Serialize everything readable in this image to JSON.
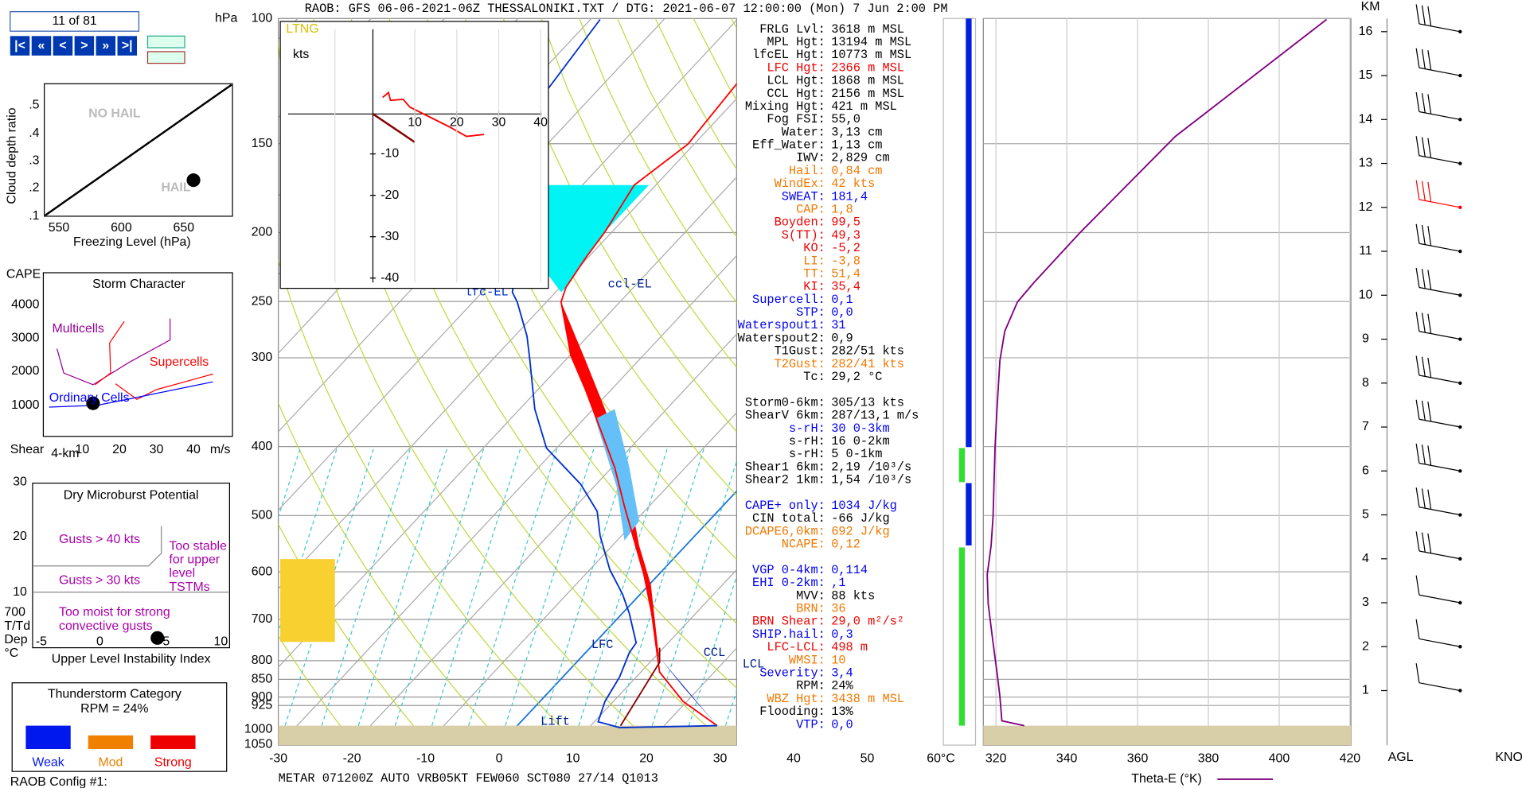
{
  "header": "RAOB:  GFS 06-06-2021-06Z THESSALONIKI.TXT / DTG: 2021-06-07 12:00:00 (Mon)  7 Jun 2:00 PM",
  "nav": {
    "counter": "11 of 81",
    "buttons": [
      "|<",
      "«",
      "<",
      ">",
      "»",
      ">|"
    ]
  },
  "hail_chart": {
    "y_label": "Cloud depth ratio",
    "x_label": "Freezing Level (hPa)",
    "no_hail": "NO HAIL",
    "hail": "HAIL",
    "yticks": [
      ".5",
      ".4",
      ".3",
      ".2",
      ".1"
    ],
    "xticks": [
      "550",
      "600",
      "650"
    ]
  },
  "storm_character": {
    "title": "Storm Character",
    "y_label": "CAPE",
    "yticks": [
      "4000",
      "3000",
      "2000",
      "1000"
    ],
    "regions": [
      "Multicells",
      "Supercells",
      "Ordinary Cells"
    ],
    "x_label": "Shear",
    "x_sub": "4-km",
    "xticks": [
      "10",
      "20",
      "30",
      "40"
    ],
    "x_unit": "m/s"
  },
  "microburst": {
    "title": "Dry Microburst Potential",
    "yticks": [
      "30",
      "20",
      "10"
    ],
    "y_label": [
      "700",
      "T/Td",
      "Dep",
      "°C"
    ],
    "xticks": [
      "-5",
      "0",
      "5",
      "10"
    ],
    "x_label": "Upper Level Instability Index",
    "gusts40": "Gusts > 40 kts",
    "gusts30": "Gusts > 30 kts",
    "stable": [
      "Too stable",
      "for upper",
      "level",
      "TSTMs"
    ],
    "moist": [
      "Too moist for strong",
      "convective gusts"
    ]
  },
  "thunderstorm": {
    "title": "Thunderstorm Category",
    "rpm": "RPM = 24%",
    "categories": [
      "Weak",
      "Mod",
      "Strong"
    ]
  },
  "config": "RAOB Config #1:",
  "skewt": {
    "unit": "hPa",
    "pressure_ticks": [
      "100",
      "150",
      "200",
      "250",
      "300",
      "400",
      "500",
      "600",
      "700",
      "800",
      "850",
      "900",
      "925",
      "1000",
      "1050"
    ],
    "temp_ticks": [
      "-30",
      "-20",
      "-10",
      "0",
      "10",
      "20",
      "30",
      "40",
      "50",
      "60°C"
    ],
    "levels": {
      "lfc_el": "lfc-EL",
      "ccl_el": "ccl-EL",
      "lfc": "LFC",
      "ccl": "CCL",
      "lcl": "LCL",
      "lift": "Lift"
    },
    "metar": "METAR 071200Z AUTO VRB05KT FEW060 SCT080 27/14 Q1013"
  },
  "hodograph": {
    "ltng": "LTNG",
    "unit": "kts",
    "xticks": [
      "10",
      "20",
      "30",
      "40"
    ],
    "yticks": [
      "-10",
      "-20",
      "-30",
      "-40"
    ]
  },
  "indices": [
    {
      "label": "FRLG Lvl:",
      "value": "3618 m MSL",
      "color": "#000000"
    },
    {
      "label": "MPL Hgt:",
      "value": "13194 m MSL",
      "color": "#000000"
    },
    {
      "label": "lfcEL Hgt:",
      "value": "10773 m MSL",
      "color": "#000000"
    },
    {
      "label": "LFC Hgt:",
      "value": "2366 m MSL",
      "color": "#ee0000"
    },
    {
      "label": "LCL Hgt:",
      "value": "1868 m MSL",
      "color": "#000000"
    },
    {
      "label": "CCL Hgt:",
      "value": "2156 m MSL",
      "color": "#000000"
    },
    {
      "label": "Mixing Hgt:",
      "value": "421 m MSL",
      "color": "#000000"
    },
    {
      "label": "Fog FSI:",
      "value": "55,0",
      "color": "#000000"
    },
    {
      "label": "Water:",
      "value": "3,13 cm",
      "color": "#000000"
    },
    {
      "label": "Eff_Water:",
      "value": "1,13 cm",
      "color": "#000000"
    },
    {
      "label": "IWV:",
      "value": "2,829 cm",
      "color": "#000000"
    },
    {
      "label": "Hail:",
      "value": "0,84 cm",
      "color": "#f07800"
    },
    {
      "label": "WindEx:",
      "value": "42 kts",
      "color": "#f07800"
    },
    {
      "label": "SWEAT:",
      "value": "181,4",
      "color": "#0000ee"
    },
    {
      "label": "CAP:",
      "value": "1,8",
      "color": "#f07800"
    },
    {
      "label": "Boyden:",
      "value": "99,5",
      "color": "#ee0000"
    },
    {
      "label": "S(TT):",
      "value": "49,3",
      "color": "#ee0000"
    },
    {
      "label": "KO:",
      "value": "-5,2",
      "color": "#ee0000"
    },
    {
      "label": "LI:",
      "value": "-3,8",
      "color": "#f07800"
    },
    {
      "label": "TT:",
      "value": "51,4",
      "color": "#f07800"
    },
    {
      "label": "KI:",
      "value": "35,4",
      "color": "#ee0000"
    },
    {
      "label": "Supercell:",
      "value": "0,1",
      "color": "#0000ee"
    },
    {
      "label": "STP:",
      "value": "0,0",
      "color": "#0000ee"
    },
    {
      "label": "Waterspout1:",
      "value": "31",
      "color": "#0000ee"
    },
    {
      "label": "Waterspout2:",
      "value": "0,9",
      "color": "#000000"
    },
    {
      "label": "T1Gust:",
      "value": "282/51 kts",
      "color": "#000000"
    },
    {
      "label": "T2Gust:",
      "value": "282/41 kts",
      "color": "#f07800"
    },
    {
      "label": "Tc:",
      "value": "29,2 °C",
      "color": "#000000"
    },
    null,
    {
      "label": "Storm0-6km:",
      "value": "305/13 kts",
      "color": "#000000"
    },
    {
      "label": "ShearV 6km:",
      "value": "287/13,1 m/s",
      "color": "#000000"
    },
    {
      "label": "s-rH:",
      "value": "30  0-3km",
      "color": "#0000ee"
    },
    {
      "label": "s-rH:",
      "value": "16  0-2km",
      "color": "#000000"
    },
    {
      "label": "s-rH:",
      "value": "5  0-1km",
      "color": "#000000"
    },
    {
      "label": "Shear1 6km:",
      "value": "2,19 /10³/s",
      "color": "#000000"
    },
    {
      "label": "Shear2 1km:",
      "value": "1,54 /10³/s",
      "color": "#000000"
    },
    null,
    {
      "label": "CAPE+ only:",
      "value": "1034 J/kg",
      "color": "#0000ee"
    },
    {
      "label": "CIN total:",
      "value": "-66 J/kg",
      "color": "#000000"
    },
    {
      "label": "DCAPE6,0km:",
      "value": "692 J/kg",
      "color": "#f07800"
    },
    {
      "label": "NCAPE:",
      "value": "0,12",
      "color": "#f07800"
    },
    null,
    {
      "label": "VGP 0-4km:",
      "value": "0,114",
      "color": "#0000ee"
    },
    {
      "label": "EHI 0-2km:",
      "value": ",1",
      "color": "#0000ee"
    },
    {
      "label": "MVV:",
      "value": "88 kts",
      "color": "#000000"
    },
    {
      "label": "BRN:",
      "value": "36",
      "color": "#f07800"
    },
    {
      "label": "BRN Shear:",
      "value": "29,0 m²/s²",
      "color": "#ee0000"
    },
    {
      "label": "SHIP.hail:",
      "value": "0,3",
      "color": "#0000ee"
    },
    {
      "label": "LFC-LCL:",
      "value": "498 m",
      "color": "#ee0000"
    },
    {
      "label": "WMSI:",
      "value": "10",
      "color": "#f07800"
    },
    {
      "label": "Severity:",
      "value": "3,4",
      "color": "#0000ee"
    },
    {
      "label": "RPM:",
      "value": "24%",
      "color": "#000000"
    },
    {
      "label": "WBZ Hgt:",
      "value": "3438 m MSL",
      "color": "#f07800"
    },
    {
      "label": "Flooding:",
      "value": "13%",
      "color": "#000000"
    },
    {
      "label": "VTP:",
      "value": "0,0",
      "color": "#0000ee"
    }
  ],
  "theta_e": {
    "xticks": [
      "320",
      "340",
      "360",
      "380",
      "400",
      "420"
    ],
    "x_label": "Theta-E (°K)"
  },
  "height_axis": {
    "unit": "KM",
    "ticks": [
      "1",
      "2",
      "3",
      "4",
      "5",
      "6",
      "7",
      "8",
      "9",
      "10",
      "11",
      "12",
      "13",
      "14",
      "15",
      "16"
    ],
    "agl": "AGL",
    "knots": "KNOTS"
  }
}
